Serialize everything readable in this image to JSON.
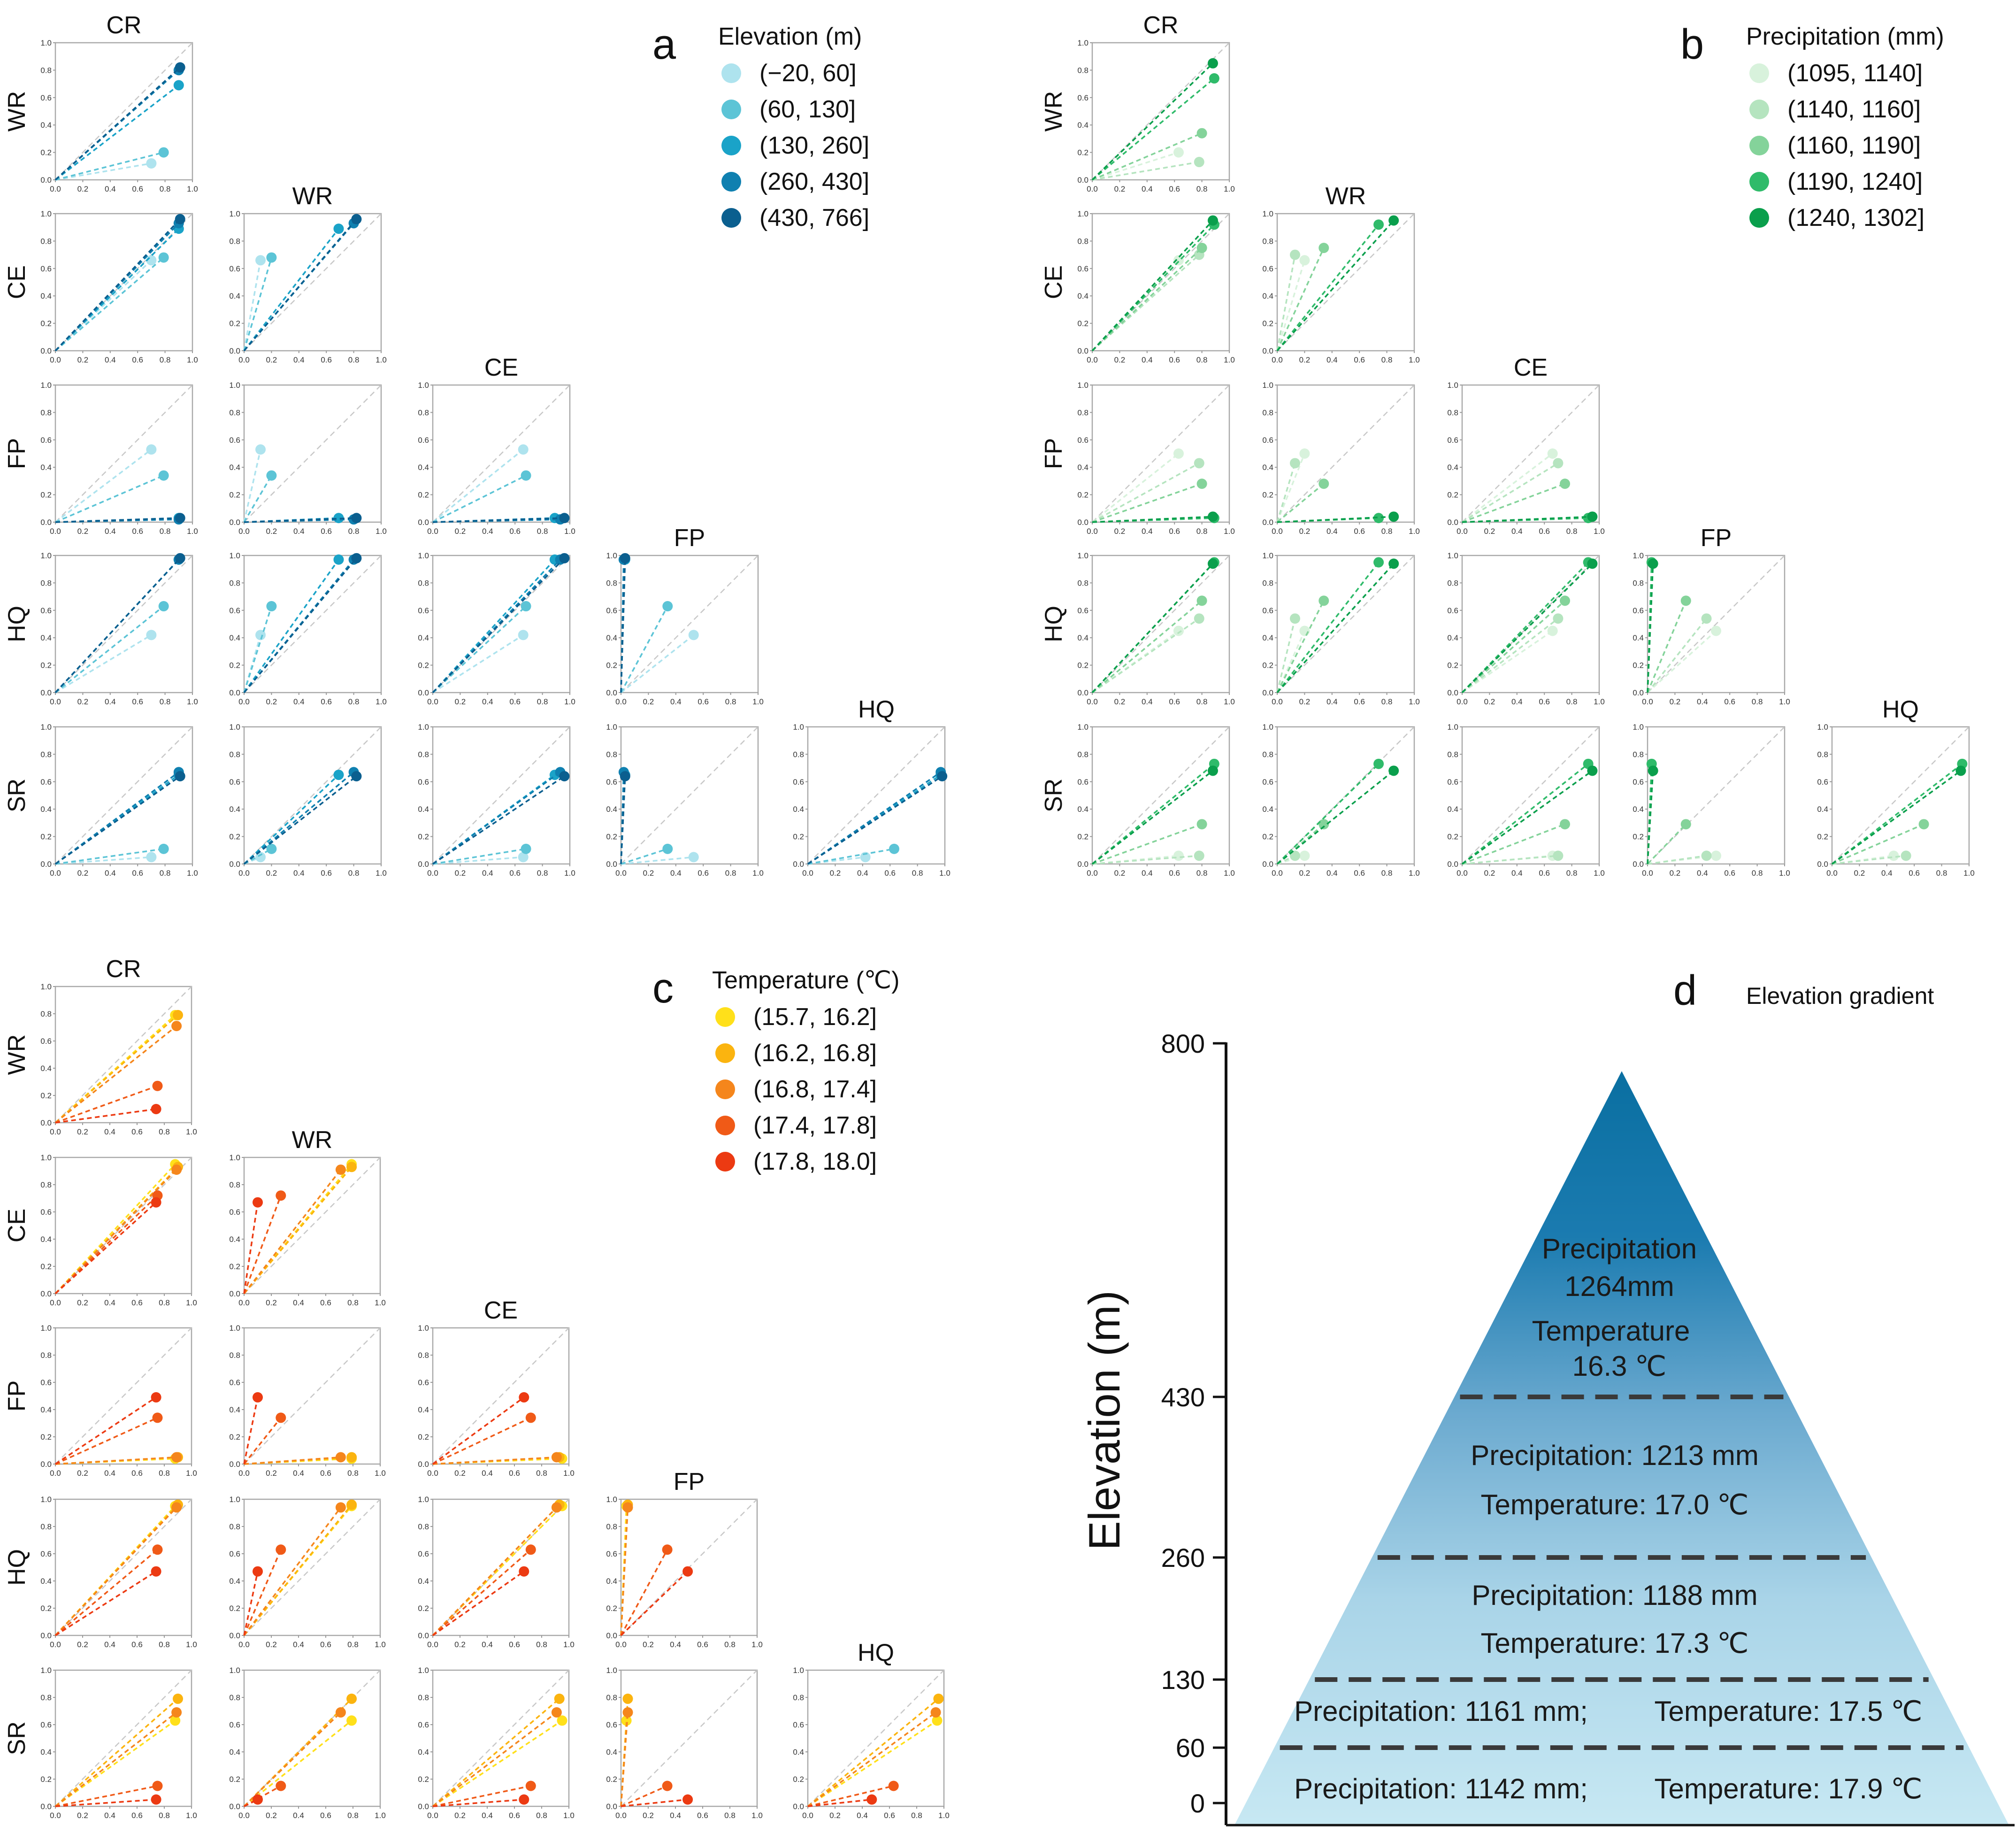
{
  "chart_data": {
    "type": "scatter",
    "variables": [
      "CR",
      "WR",
      "CE",
      "FP",
      "HQ",
      "SR"
    ],
    "axis_ticks": [
      "0.0",
      "0.2",
      "0.4",
      "0.6",
      "0.8",
      "1.0"
    ],
    "xlim": [
      0,
      1
    ],
    "ylim": [
      0,
      1
    ],
    "reference_line": "y = x",
    "ray_from_origin": true,
    "note": "matrix panels: one point per group at (x variable, y variable)",
    "panels": [
      {
        "letter": "a",
        "legend_title": "Elevation (m)",
        "groups": [
          {
            "name": "(−20, 60]",
            "color": "#aee3ee",
            "values": {
              "CR": 0.7,
              "WR": 0.12,
              "CE": 0.66,
              "FP": 0.53,
              "HQ": 0.42,
              "SR": 0.05
            }
          },
          {
            "name": "(60, 130]",
            "color": "#5cc4d6",
            "values": {
              "CR": 0.79,
              "WR": 0.2,
              "CE": 0.68,
              "FP": 0.34,
              "HQ": 0.63,
              "SR": 0.11
            }
          },
          {
            "name": "(130, 260]",
            "color": "#1aa3c8",
            "values": {
              "CR": 0.9,
              "WR": 0.69,
              "CE": 0.89,
              "FP": 0.03,
              "HQ": 0.97,
              "SR": 0.65
            }
          },
          {
            "name": "(260, 430]",
            "color": "#0f80b0",
            "values": {
              "CR": 0.9,
              "WR": 0.8,
              "CE": 0.93,
              "FP": 0.02,
              "HQ": 0.97,
              "SR": 0.67
            }
          },
          {
            "name": "(430, 766]",
            "color": "#0b5f8f",
            "values": {
              "CR": 0.91,
              "WR": 0.82,
              "CE": 0.96,
              "FP": 0.03,
              "HQ": 0.98,
              "SR": 0.64
            }
          }
        ]
      },
      {
        "letter": "b",
        "legend_title": "Precipitation (mm)",
        "groups": [
          {
            "name": "(1095, 1140]",
            "color": "#d8f2dc",
            "values": {
              "CR": 0.63,
              "WR": 0.2,
              "CE": 0.66,
              "FP": 0.5,
              "HQ": 0.45,
              "SR": 0.06
            }
          },
          {
            "name": "(1140, 1160]",
            "color": "#b5e4bf",
            "values": {
              "CR": 0.78,
              "WR": 0.13,
              "CE": 0.7,
              "FP": 0.43,
              "HQ": 0.54,
              "SR": 0.06
            }
          },
          {
            "name": "(1160, 1190]",
            "color": "#84d39a",
            "values": {
              "CR": 0.8,
              "WR": 0.34,
              "CE": 0.75,
              "FP": 0.28,
              "HQ": 0.67,
              "SR": 0.29
            }
          },
          {
            "name": "(1190, 1240]",
            "color": "#2fbb6a",
            "values": {
              "CR": 0.89,
              "WR": 0.74,
              "CE": 0.92,
              "FP": 0.03,
              "HQ": 0.95,
              "SR": 0.73
            }
          },
          {
            "name": "(1240, 1302]",
            "color": "#0a9f4c",
            "values": {
              "CR": 0.88,
              "WR": 0.85,
              "CE": 0.95,
              "FP": 0.04,
              "HQ": 0.94,
              "SR": 0.68
            }
          }
        ]
      },
      {
        "letter": "c",
        "legend_title": "Temperature (℃)",
        "groups": [
          {
            "name": "(15.7, 16.2]",
            "color": "#ffe01a",
            "values": {
              "CR": 0.88,
              "WR": 0.79,
              "CE": 0.95,
              "FP": 0.04,
              "HQ": 0.95,
              "SR": 0.63
            }
          },
          {
            "name": "(16.2, 16.8]",
            "color": "#fbb40f",
            "values": {
              "CR": 0.9,
              "WR": 0.79,
              "CE": 0.93,
              "FP": 0.05,
              "HQ": 0.96,
              "SR": 0.79
            }
          },
          {
            "name": "(16.8, 17.4]",
            "color": "#f5861c",
            "values": {
              "CR": 0.89,
              "WR": 0.71,
              "CE": 0.91,
              "FP": 0.05,
              "HQ": 0.94,
              "SR": 0.69
            }
          },
          {
            "name": "(17.4, 17.8]",
            "color": "#f05a17",
            "values": {
              "CR": 0.75,
              "WR": 0.27,
              "CE": 0.72,
              "FP": 0.34,
              "HQ": 0.63,
              "SR": 0.15
            }
          },
          {
            "name": "(17.8, 18.0]",
            "color": "#ec3a12",
            "values": {
              "CR": 0.74,
              "WR": 0.1,
              "CE": 0.67,
              "FP": 0.49,
              "HQ": 0.47,
              "SR": 0.05
            }
          }
        ]
      }
    ],
    "elevation_gradient": {
      "letter": "d",
      "title": "Elevation gradient",
      "ylabel": "Elevation (m)",
      "ylim": [
        0,
        800
      ],
      "y_ticks": [
        "800",
        "430",
        "260",
        "130",
        "60",
        "0"
      ],
      "boundaries": [
        60,
        130,
        260,
        430
      ],
      "peak": 766,
      "bands": [
        {
          "lines": [
            "Precipitation",
            "1264mm",
            "Temperature",
            "16.3 ℃"
          ]
        },
        {
          "lines": [
            "Precipitation: 1213 mm",
            "Temperature: 17.0 ℃"
          ]
        },
        {
          "lines": [
            "Precipitation: 1188 mm",
            "Temperature: 17.3 ℃"
          ]
        },
        {
          "lines": [
            "Precipitation: 1161 mm;",
            "Temperature: 17.5 ℃"
          ]
        },
        {
          "lines": [
            "Precipitation: 1142 mm;",
            "Temperature: 17.9 ℃"
          ]
        }
      ]
    }
  }
}
